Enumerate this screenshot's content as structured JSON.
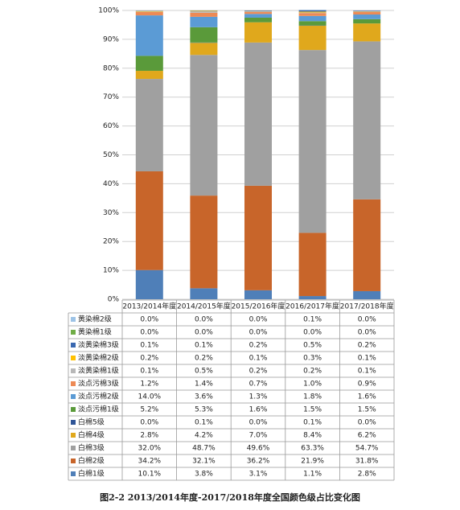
{
  "chart_data": {
    "type": "stacked_bar",
    "caption": "图2-2 2013/2014年度-2017/2018年度全国颜色级占比变化图",
    "categories": [
      "2013/2014年度",
      "2014/2015年度",
      "2015/2016年度",
      "2016/2017年度",
      "2017/2018年度"
    ],
    "ylim": [
      0,
      100
    ],
    "yticks": [
      {
        "value": 0,
        "label": "0%"
      },
      {
        "value": 10,
        "label": "10%"
      },
      {
        "value": 20,
        "label": "20%"
      },
      {
        "value": 30,
        "label": "30%"
      },
      {
        "value": 40,
        "label": "40%"
      },
      {
        "value": 50,
        "label": "50%"
      },
      {
        "value": 60,
        "label": "60%"
      },
      {
        "value": 70,
        "label": "70%"
      },
      {
        "value": 80,
        "label": "80%"
      },
      {
        "value": 90,
        "label": "90%"
      },
      {
        "value": 100,
        "label": "100%"
      }
    ],
    "grid": true,
    "series": [
      {
        "name": "白棉1级",
        "color": "#4f7fb8",
        "values": [
          10.1,
          3.8,
          3.1,
          1.1,
          2.8
        ],
        "value_labels": [
          "10.1%",
          "3.8%",
          "3.1%",
          "1.1%",
          "2.8%"
        ]
      },
      {
        "name": "白棉2级",
        "color": "#c8652a",
        "values": [
          34.2,
          32.1,
          36.2,
          21.9,
          31.8
        ],
        "value_labels": [
          "34.2%",
          "32.1%",
          "36.2%",
          "21.9%",
          "31.8%"
        ]
      },
      {
        "name": "白棉3级",
        "color": "#a0a0a0",
        "values": [
          32.0,
          48.7,
          49.6,
          63.3,
          54.7
        ],
        "value_labels": [
          "32.0%",
          "48.7%",
          "49.6%",
          "63.3%",
          "54.7%"
        ]
      },
      {
        "name": "白棉4级",
        "color": "#e0a81c",
        "values": [
          2.8,
          4.2,
          7.0,
          8.4,
          6.2
        ],
        "value_labels": [
          "2.8%",
          "4.2%",
          "7.0%",
          "8.4%",
          "6.2%"
        ]
      },
      {
        "name": "白棉5级",
        "color": "#2f5597",
        "values": [
          0.0,
          0.1,
          0.0,
          0.1,
          0.0
        ],
        "value_labels": [
          "0.0%",
          "0.1%",
          "0.0%",
          "0.1%",
          "0.0%"
        ]
      },
      {
        "name": "淡点污棉1级",
        "color": "#5a9a3a",
        "values": [
          5.2,
          5.3,
          1.6,
          1.5,
          1.5
        ],
        "value_labels": [
          "5.2%",
          "5.3%",
          "1.6%",
          "1.5%",
          "1.5%"
        ]
      },
      {
        "name": "淡点污棉2级",
        "color": "#5b9bd5",
        "values": [
          14.0,
          3.6,
          1.3,
          1.8,
          1.6
        ],
        "value_labels": [
          "14.0%",
          "3.6%",
          "1.3%",
          "1.8%",
          "1.6%"
        ]
      },
      {
        "name": "淡点污棉3级",
        "color": "#ed8a55",
        "values": [
          1.2,
          1.4,
          0.7,
          1.0,
          0.9
        ],
        "value_labels": [
          "1.2%",
          "1.4%",
          "0.7%",
          "1.0%",
          "0.9%"
        ]
      },
      {
        "name": "淡黄染棉1级",
        "color": "#b8b8b8",
        "values": [
          0.1,
          0.5,
          0.2,
          0.2,
          0.1
        ],
        "value_labels": [
          "0.1%",
          "0.5%",
          "0.2%",
          "0.2%",
          "0.1%"
        ]
      },
      {
        "name": "淡黄染棉2级",
        "color": "#ffc000",
        "values": [
          0.2,
          0.2,
          0.1,
          0.3,
          0.1
        ],
        "value_labels": [
          "0.2%",
          "0.2%",
          "0.1%",
          "0.3%",
          "0.1%"
        ]
      },
      {
        "name": "淡黄染棉3级",
        "color": "#3a68b0",
        "values": [
          0.1,
          0.1,
          0.2,
          0.5,
          0.2
        ],
        "value_labels": [
          "0.1%",
          "0.1%",
          "0.2%",
          "0.5%",
          "0.2%"
        ]
      },
      {
        "name": "黄染棉1级",
        "color": "#70ad47",
        "values": [
          0.0,
          0.0,
          0.0,
          0.0,
          0.0
        ],
        "value_labels": [
          "0.0%",
          "0.0%",
          "0.0%",
          "0.0%",
          "0.0%"
        ]
      },
      {
        "name": "黄染棉2级",
        "color": "#9dc3e6",
        "values": [
          0.0,
          0.0,
          0.0,
          0.1,
          0.0
        ],
        "value_labels": [
          "0.0%",
          "0.0%",
          "0.0%",
          "0.1%",
          "0.0%"
        ]
      }
    ]
  }
}
